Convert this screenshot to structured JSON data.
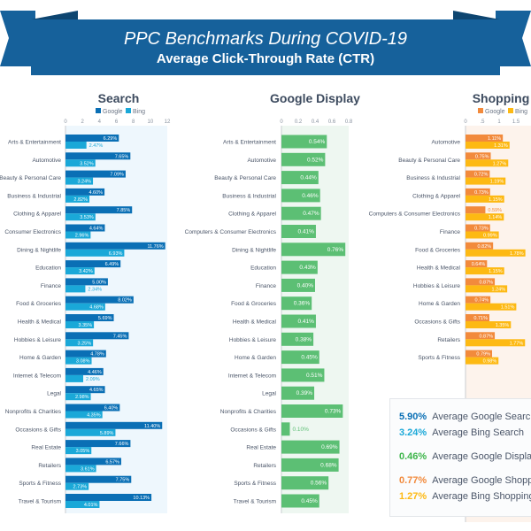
{
  "header": {
    "title": "PPC Benchmarks During COVID-19",
    "subtitle": "Average Click-Through Rate (CTR)"
  },
  "colors": {
    "banner": "#16619b",
    "google_search": "#0a6fb5",
    "bing_search": "#1aa8d8",
    "display": "#5cbf74",
    "google_shopping": "#f28a3c",
    "bing_shopping": "#fdb913"
  },
  "chart_data": [
    {
      "type": "bar",
      "orientation": "horizontal",
      "title": "Search",
      "xlim": [
        0,
        12
      ],
      "ticks": [
        "0",
        "2",
        "4",
        "6",
        "8",
        "10",
        "12"
      ],
      "legend": "top",
      "categories": [
        "Arts & Entertainment",
        "Automotive",
        "Beauty & Personal Care",
        "Business & Industrial",
        "Clothing & Apparel",
        "Consumer Electronics",
        "Dining & Nightlife",
        "Education",
        "Finance",
        "Food & Groceries",
        "Health & Medical",
        "Hobbies & Leisure",
        "Home & Garden",
        "Internet & Telecom",
        "Legal",
        "Nonprofits & Charities",
        "Occasions & Gifts",
        "Real Estate",
        "Retailers",
        "Sports & Fitness",
        "Travel & Tourism"
      ],
      "series": [
        {
          "name": "Google",
          "values": [
            6.29,
            7.65,
            7.09,
            4.6,
            7.85,
            4.64,
            11.76,
            6.49,
            5.0,
            8.02,
            5.69,
            7.45,
            4.78,
            4.46,
            4.65,
            6.4,
            11.4,
            7.66,
            6.57,
            7.75,
            10.13
          ]
        },
        {
          "name": "Bing",
          "values": [
            2.47,
            3.52,
            3.24,
            2.82,
            3.53,
            2.96,
            6.93,
            3.42,
            2.34,
            4.68,
            3.35,
            3.25,
            3.08,
            2.09,
            2.98,
            4.35,
            5.89,
            3.05,
            3.61,
            2.73,
            4.01
          ]
        }
      ]
    },
    {
      "type": "bar",
      "orientation": "horizontal",
      "title": "Google Display",
      "xlim": [
        0,
        0.8
      ],
      "ticks": [
        "0",
        "0.2",
        "0.4",
        "0.6",
        "0.8"
      ],
      "categories": [
        "Arts & Entertainment",
        "Automotive",
        "Beauty & Personal Care",
        "Business & Industrial",
        "Clothing & Apparel",
        "Computers & Consumer Electronics",
        "Dining & Nightlife",
        "Education",
        "Finance",
        "Food & Groceries",
        "Health & Medical",
        "Hobbies & Leisure",
        "Home & Garden",
        "Internet & Telecom",
        "Legal",
        "Nonprofits & Charities",
        "Occasions & Gifts",
        "Real Estate",
        "Retailers",
        "Sports & Fitness",
        "Travel & Tourism"
      ],
      "series": [
        {
          "values": [
            0.54,
            0.52,
            0.44,
            0.46,
            0.47,
            0.41,
            0.76,
            0.43,
            0.4,
            0.36,
            0.41,
            0.38,
            0.45,
            0.51,
            0.39,
            0.73,
            0.1,
            0.69,
            0.68,
            0.56,
            0.45
          ]
        }
      ]
    },
    {
      "type": "bar",
      "orientation": "horizontal",
      "title": "Shopping",
      "xlim": [
        0,
        2
      ],
      "ticks": [
        "0",
        ".5",
        "1",
        "1.5"
      ],
      "legend": "top",
      "categories": [
        "Automotive",
        "Beauty & Personal Care",
        "Business & Industrial",
        "Clothing & Apparel",
        "Computers & Consumer Electronics",
        "Finance",
        "Food & Groceries",
        "Health & Medical",
        "Hobbies & Leisure",
        "Home & Garden",
        "Occasions & Gifts",
        "Retailers",
        "Sports & Fitness"
      ],
      "series": [
        {
          "name": "Google",
          "values": [
            1.11,
            0.75,
            0.72,
            0.73,
            0.59,
            0.73,
            0.82,
            0.64,
            0.87,
            0.74,
            0.71,
            0.87,
            0.79
          ]
        },
        {
          "name": "Bing",
          "values": [
            1.31,
            1.27,
            1.19,
            1.15,
            1.14,
            0.99,
            1.78,
            1.15,
            1.24,
            1.51,
            1.35,
            1.77,
            0.98
          ]
        }
      ]
    }
  ],
  "averages": [
    {
      "value": "5.90%",
      "label": "Average Google Search",
      "color": "#0a6fb5"
    },
    {
      "value": "3.24%",
      "label": "Average Bing Search",
      "color": "#1aa8d8"
    },
    {
      "value": "0.46%",
      "label": "Average Google Display",
      "color": "#3db54a"
    },
    {
      "value": "0.77%",
      "label": "Average Google Shopping",
      "color": "#f28a3c"
    },
    {
      "value": "1.27%",
      "label": "Average Bing Shopping",
      "color": "#fdb913"
    }
  ]
}
